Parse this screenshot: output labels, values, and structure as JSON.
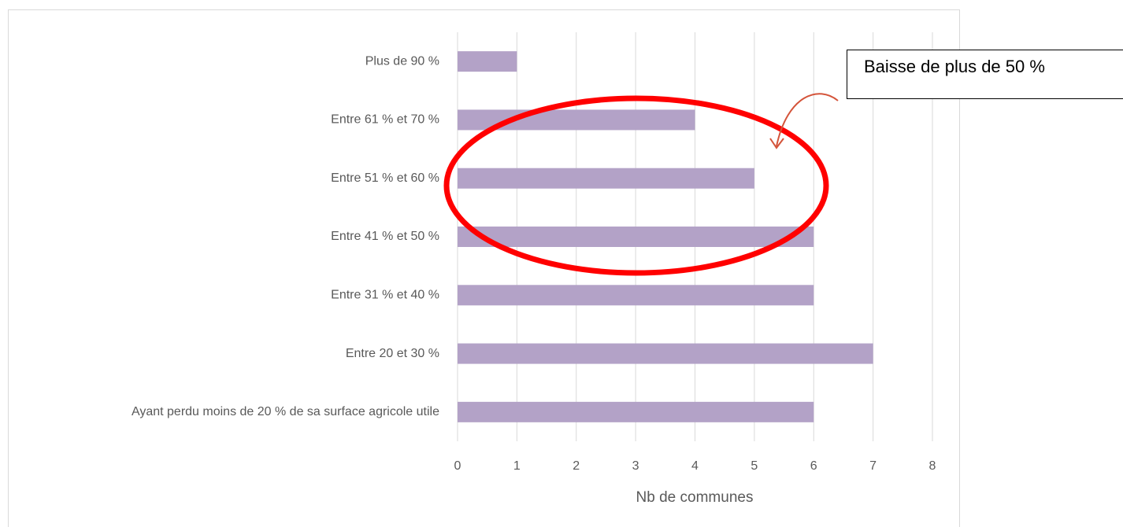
{
  "chart_data": {
    "type": "bar",
    "orientation": "horizontal",
    "categories": [
      "Plus de 90 %",
      "Entre 61 % et 70 %",
      "Entre 51 % et 60 %",
      "Entre 41 % et 50 %",
      "Entre 31 % et 40 %",
      "Entre 20 et 30 %",
      "Ayant perdu moins de 20 % de sa surface agricole utile"
    ],
    "values": [
      1,
      4,
      5,
      6,
      6,
      7,
      6
    ],
    "color": "#b3a2c7",
    "xlim": [
      0,
      8
    ],
    "xticks": [
      0,
      1,
      2,
      3,
      4,
      5,
      6,
      7,
      8
    ],
    "grid": true,
    "x_label": "Nb de communes",
    "annotation": "Baisse de plus de 50 %"
  }
}
